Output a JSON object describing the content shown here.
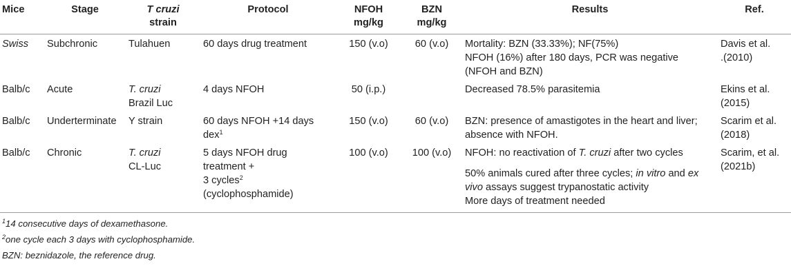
{
  "headers": {
    "mice": "Mice",
    "stage": "Stage",
    "strain_italic": "T cruzi",
    "strain_rest": "strain",
    "protocol": "Protocol",
    "nfoh_1": "NFOH",
    "nfoh_2": "mg/kg",
    "bzn_1": "BZN",
    "bzn_2": "mg/kg",
    "results": "Results",
    "ref": "Ref."
  },
  "rows": [
    {
      "mice": "Swiss",
      "stage": "Subchronic",
      "strain": "Tulahuen",
      "protocol": "60 days drug treatment",
      "nfoh": "150 (v.o)",
      "bzn": "60 (v.o)",
      "results_1": "Mortality: BZN (33.33%); NF(75%)",
      "results_2": "NFOH (16%) after 180 days, PCR was negative",
      "results_3": "(NFOH and BZN)",
      "ref_1": "Davis et al.",
      "ref_2": ".(2010)"
    },
    {
      "mice": "Balb/c",
      "stage": "Acute",
      "strain_italic": "T. cruzi",
      "strain_rest": "Brazil Luc",
      "protocol": "4 days NFOH",
      "nfoh": "50 (i.p.)",
      "bzn": "",
      "results_1": "Decreased 78.5% parasitemia",
      "ref_1": "Ekins et al.",
      "ref_2": "(2015)"
    },
    {
      "mice": "Balb/c",
      "stage": "Underterminate",
      "strain": "Y strain",
      "protocol_1": "60 days NFOH +14 days",
      "protocol_2": "dex",
      "protocol_sup": "1",
      "nfoh": "150 (v.o)",
      "bzn": "60 (v.o)",
      "results_1": "BZN: presence of amastigotes in the heart and liver;",
      "results_2": "absence with NFOH.",
      "ref_1": "Scarim et al.",
      "ref_2": "(2018)"
    },
    {
      "mice": "Balb/c",
      "stage": "Chronic",
      "strain_italic": "T. cruzi",
      "strain_rest": "CL-Luc",
      "protocol_1": "5 days NFOH drug",
      "protocol_2": "treatment +",
      "protocol_3": "3 cycles",
      "protocol_sup": "2",
      "protocol_4": "(cyclophosphamide)",
      "nfoh": "100 (v.o)",
      "bzn": "100 (v.o)",
      "results_1a": "NFOH: no reactivation of ",
      "results_1b": "T. cruzi",
      "results_1c": " after two cycles",
      "results_2a": "50% animals cured after three cycles; ",
      "results_2b": "in vitro",
      "results_2c": " and ",
      "results_2d": "ex",
      "results_3a": "vivo",
      "results_3b": " assays suggest trypanostatic activity",
      "results_4": "More days of treatment needed",
      "ref_1": "Scarim, et al.",
      "ref_2": "(2021b)"
    }
  ],
  "footnotes": {
    "fn1_sup": "1",
    "fn1_text": "14 consecutive days of dexamethasone.",
    "fn2_sup": "2",
    "fn2_text": "one cycle each 3 days with cyclophosphamide.",
    "fn3_text": "BZN: beznidazole, the reference drug."
  }
}
